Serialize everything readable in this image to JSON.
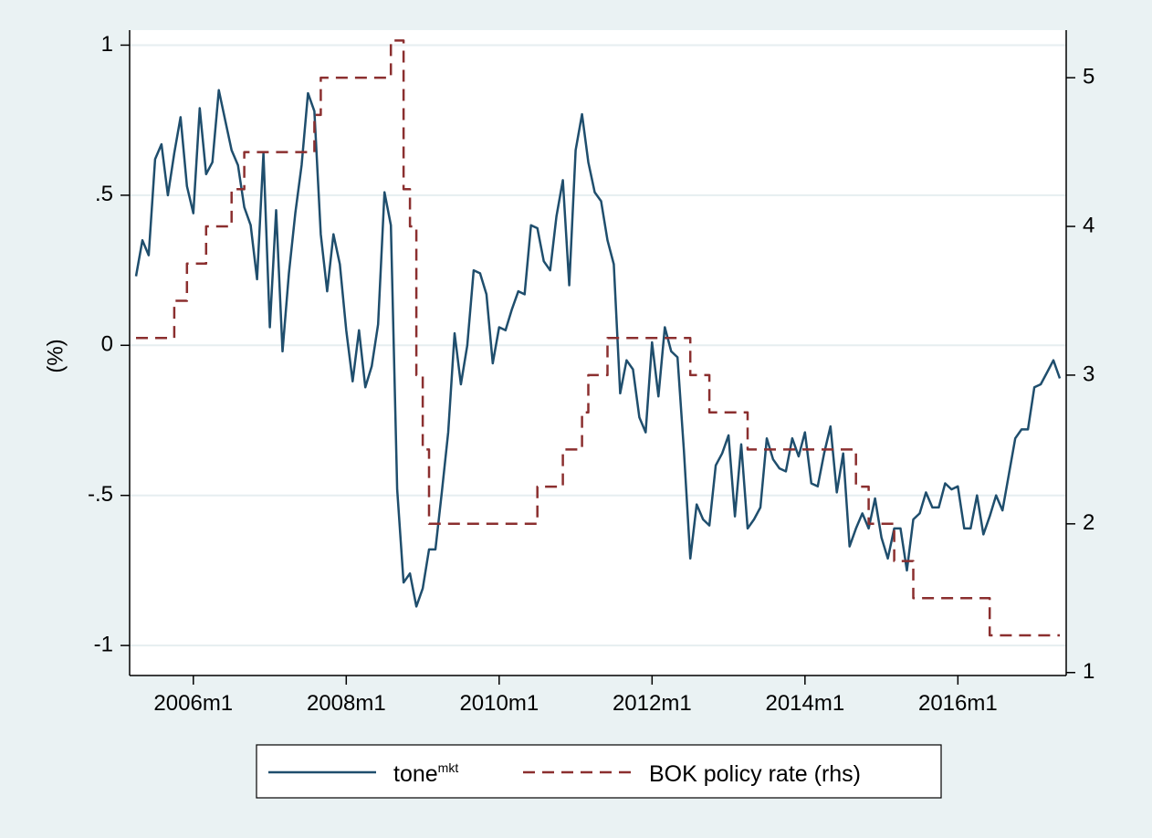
{
  "chart_data": {
    "type": "line",
    "title": "",
    "xlabel": "",
    "ylabel": "(%)",
    "ylim": [
      -1.1,
      1.05
    ],
    "ylim_right": [
      0.98,
      5.32
    ],
    "xlim": [
      "2005m3",
      "2017m6"
    ],
    "grid": "horizontal, left axis",
    "legend_position": "bottom",
    "x_tick_labels": [
      "2006m1",
      "2008m1",
      "2010m1",
      "2012m1",
      "2014m1",
      "2016m1"
    ],
    "y_left_tick_labels": [
      "1",
      ".5",
      "0",
      "-.5",
      "-1"
    ],
    "y_right_tick_labels": [
      "5",
      "4",
      "3",
      "2",
      "1"
    ],
    "colors": {
      "tone": "#1f4e6d",
      "policy_rate": "#8b2f2f",
      "plot_bg": "#ffffff",
      "page_bg": "#eaf2f3",
      "grid": "#e6eef0"
    },
    "series": [
      {
        "name": "tone",
        "superscript": "mkt",
        "axis": "left",
        "style": "solid",
        "x": [
          "2005m4",
          "2005m5",
          "2005m6",
          "2005m7",
          "2005m8",
          "2005m9",
          "2005m10",
          "2005m11",
          "2005m12",
          "2006m1",
          "2006m2",
          "2006m3",
          "2006m4",
          "2006m5",
          "2006m6",
          "2006m7",
          "2006m8",
          "2006m9",
          "2006m10",
          "2006m11",
          "2006m12",
          "2007m1",
          "2007m2",
          "2007m3",
          "2007m4",
          "2007m5",
          "2007m6",
          "2007m7",
          "2007m8",
          "2007m9",
          "2007m10",
          "2007m11",
          "2007m12",
          "2008m1",
          "2008m2",
          "2008m3",
          "2008m4",
          "2008m5",
          "2008m6",
          "2008m7",
          "2008m8",
          "2008m9",
          "2008m10",
          "2008m11",
          "2008m12",
          "2009m1",
          "2009m2",
          "2009m3",
          "2009m4",
          "2009m5",
          "2009m6",
          "2009m7",
          "2009m8",
          "2009m9",
          "2009m10",
          "2009m11",
          "2009m12",
          "2010m1",
          "2010m2",
          "2010m3",
          "2010m4",
          "2010m5",
          "2010m6",
          "2010m7",
          "2010m8",
          "2010m9",
          "2010m10",
          "2010m11",
          "2010m12",
          "2011m1",
          "2011m2",
          "2011m3",
          "2011m4",
          "2011m5",
          "2011m6",
          "2011m7",
          "2011m8",
          "2011m9",
          "2011m10",
          "2011m11",
          "2011m12",
          "2012m1",
          "2012m2",
          "2012m3",
          "2012m4",
          "2012m5",
          "2012m6",
          "2012m7",
          "2012m8",
          "2012m9",
          "2012m10",
          "2012m11",
          "2012m12",
          "2013m1",
          "2013m2",
          "2013m3",
          "2013m4",
          "2013m5",
          "2013m6",
          "2013m7",
          "2013m8",
          "2013m9",
          "2013m10",
          "2013m11",
          "2013m12",
          "2014m1",
          "2014m2",
          "2014m3",
          "2014m4",
          "2014m5",
          "2014m6",
          "2014m7",
          "2014m8",
          "2014m9",
          "2014m10",
          "2014m11",
          "2014m12",
          "2015m1",
          "2015m2",
          "2015m3",
          "2015m4",
          "2015m5",
          "2015m6",
          "2015m7",
          "2015m8",
          "2015m9",
          "2015m10",
          "2015m11",
          "2015m12",
          "2016m1",
          "2016m2",
          "2016m3",
          "2016m4",
          "2016m5",
          "2016m6",
          "2016m7",
          "2016m8",
          "2016m9",
          "2016m10",
          "2016m11",
          "2016m12",
          "2017m1",
          "2017m2",
          "2017m3",
          "2017m4",
          "2017m5"
        ],
        "values": [
          0.23,
          0.35,
          0.3,
          0.62,
          0.67,
          0.5,
          0.64,
          0.76,
          0.53,
          0.44,
          0.79,
          0.57,
          0.61,
          0.85,
          0.75,
          0.65,
          0.6,
          0.46,
          0.4,
          0.22,
          0.64,
          0.06,
          0.45,
          -0.02,
          0.24,
          0.44,
          0.6,
          0.84,
          0.78,
          0.37,
          0.18,
          0.37,
          0.27,
          0.05,
          -0.12,
          0.05,
          -0.14,
          -0.07,
          0.07,
          0.51,
          0.4,
          -0.48,
          -0.79,
          -0.76,
          -0.87,
          -0.81,
          -0.68,
          -0.68,
          -0.49,
          -0.29,
          0.04,
          -0.13,
          0.0,
          0.25,
          0.24,
          0.17,
          -0.06,
          0.06,
          0.05,
          0.12,
          0.18,
          0.17,
          0.4,
          0.39,
          0.28,
          0.25,
          0.43,
          0.55,
          0.2,
          0.65,
          0.77,
          0.61,
          0.51,
          0.48,
          0.35,
          0.27,
          -0.16,
          -0.05,
          -0.08,
          -0.24,
          -0.29,
          0.01,
          -0.17,
          0.06,
          -0.02,
          -0.04,
          -0.35,
          -0.71,
          -0.53,
          -0.58,
          -0.6,
          -0.4,
          -0.36,
          -0.3,
          -0.57,
          -0.33,
          -0.61,
          -0.58,
          -0.54,
          -0.31,
          -0.38,
          -0.41,
          -0.42,
          -0.31,
          -0.37,
          -0.29,
          -0.46,
          -0.47,
          -0.36,
          -0.27,
          -0.49,
          -0.36,
          -0.67,
          -0.61,
          -0.56,
          -0.61,
          -0.51,
          -0.64,
          -0.71,
          -0.61,
          -0.61,
          -0.75,
          -0.58,
          -0.56,
          -0.49,
          -0.54,
          -0.54,
          -0.46,
          -0.48,
          -0.47,
          -0.61,
          -0.61,
          -0.5,
          -0.63,
          -0.57,
          -0.5,
          -0.55,
          -0.43,
          -0.31,
          -0.28,
          -0.28,
          -0.14,
          -0.13,
          -0.09,
          -0.05,
          -0.11
        ]
      },
      {
        "name": "BOK policy rate (rhs)",
        "axis": "right",
        "style": "dashed",
        "x": [
          "2005m4",
          "2005m9",
          "2005m10",
          "2005m12",
          "2006m1",
          "2006m3",
          "2006m5",
          "2006m7",
          "2006m8",
          "2006m9",
          "2007m7",
          "2007m8",
          "2007m9",
          "2008m7",
          "2008m8",
          "2008m9",
          "2008m10",
          "2008m11",
          "2008m12",
          "2009m1",
          "2009m2",
          "2010m6",
          "2010m7",
          "2010m10",
          "2010m11",
          "2011m1",
          "2011m2",
          "2011m3",
          "2011m5",
          "2011m6",
          "2011m7",
          "2012m6",
          "2012m7",
          "2012m9",
          "2012m10",
          "2013m3",
          "2013m4",
          "2014m7",
          "2014m8",
          "2014m9",
          "2014m10",
          "2014m11",
          "2015m2",
          "2015m3",
          "2015m5",
          "2015m6",
          "2016m5",
          "2016m6",
          "2017m5"
        ],
        "values": [
          3.25,
          3.25,
          3.5,
          3.75,
          3.75,
          4.0,
          4.0,
          4.25,
          4.25,
          4.5,
          4.5,
          4.75,
          5.0,
          5.0,
          5.25,
          5.25,
          4.25,
          4.0,
          3.0,
          2.5,
          2.0,
          2.0,
          2.25,
          2.25,
          2.5,
          2.5,
          2.75,
          3.0,
          3.0,
          3.25,
          3.25,
          3.25,
          3.0,
          3.0,
          2.75,
          2.75,
          2.5,
          2.5,
          2.5,
          2.25,
          2.25,
          2.0,
          2.0,
          1.75,
          1.75,
          1.5,
          1.5,
          1.25,
          1.25
        ]
      }
    ]
  },
  "legend": {
    "tone_label": "tone",
    "tone_sup": "mkt",
    "rate_label": "BOK policy rate (rhs)"
  }
}
